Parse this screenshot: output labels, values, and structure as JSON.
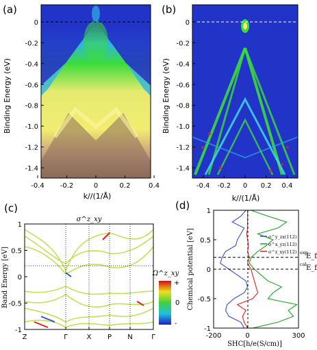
{
  "panel_labels": [
    "(a)",
    "(b)",
    "(c)",
    "(d)"
  ],
  "colors": {
    "arpes_bg": "#2233c8",
    "arpes_cyan": "#2fb4e0",
    "arpes_green": "#3bdc3b",
    "arpes_yellow": "#f2ec72",
    "arpes_brown": "#8a6a5a",
    "spectral_red": "#e02020",
    "shc_blue": "#3050e0",
    "shc_green": "#20a020",
    "shc_red": "#e02020"
  },
  "chart_data": [
    {
      "id": "a",
      "type": "heatmap",
      "ylabel": "Binding Energy (eV)",
      "xlabel": "k//(1/Å)",
      "yticks": [
        "0",
        "-0.2",
        "-0.4",
        "-0.6",
        "-0.8",
        "-1.0",
        "-1.2",
        "-1.4"
      ],
      "xticks": [
        "-0.4",
        "-0.2",
        "0",
        "0.2",
        "0.4"
      ],
      "ylim": [
        -1.5,
        0.07
      ],
      "xlim": [
        -0.55,
        0.55
      ],
      "dashed_line_y": 0
    },
    {
      "id": "b",
      "type": "heatmap",
      "ylabel": "Binding Energy (eV)",
      "xlabel": "k//(1/Å)",
      "yticks": [
        "0",
        "-0.2",
        "-0.4",
        "-0.6",
        "-0.8",
        "-1.0",
        "-1.2",
        "-1.4"
      ],
      "xticks": [
        "-0.4",
        "-0.2",
        "0",
        "0.2",
        "0.4"
      ],
      "ylim": [
        -1.5,
        0.07
      ],
      "xlim": [
        -0.5,
        0.5
      ],
      "dashed_line_y": 0
    },
    {
      "id": "c",
      "type": "line",
      "title": "σ^z_xy",
      "ylabel": "Band Energy [eV]",
      "yticks": [
        "1",
        "0.5",
        "0",
        "-0.5",
        "-1"
      ],
      "xticks": [
        "Z",
        "Γ",
        "X",
        "P",
        "N",
        "Γ"
      ],
      "ylim": [
        -1,
        1
      ],
      "colorbar": {
        "label": "Ω^z_xy",
        "ticks": [
          "+",
          "0",
          "-"
        ]
      },
      "dotted_line_y": 0.2
    },
    {
      "id": "d",
      "type": "line",
      "ylabel": "Chemical potential [eV]",
      "xlabel": "SHC[h/e(S/cm)]",
      "yticks": [
        "1",
        "0.5",
        "0",
        "-0.5",
        "-1"
      ],
      "xticks": [
        "-200",
        "0",
        "300"
      ],
      "xlim": [
        -200,
        300
      ],
      "ylim": [
        -1,
        1
      ],
      "legend": [
        "σ^y_zx(112)",
        "σ^x_yz(112)",
        "σ^z_xy(112)"
      ],
      "hlines": [
        {
          "y": 0.2,
          "label_sup": "exp",
          "label": "E_f"
        },
        {
          "y": 0,
          "label_sup": "cal",
          "label": "E_f"
        }
      ],
      "series": [
        {
          "name": "σ^y_zx(112)",
          "color": "#3050e0",
          "y": [
            -1,
            -0.9,
            -0.8,
            -0.7,
            -0.6,
            -0.5,
            -0.4,
            -0.3,
            -0.2,
            -0.1,
            0,
            0.1,
            0.2,
            0.3,
            0.4,
            0.5,
            0.6,
            0.7,
            0.8,
            0.9,
            1
          ],
          "x": [
            -20,
            -40,
            -110,
            -130,
            -120,
            -80,
            -20,
            0,
            -10,
            -60,
            -110,
            -160,
            -150,
            -130,
            -70,
            -60,
            -40,
            -20,
            -90,
            -40,
            -10
          ]
        },
        {
          "name": "σ^x_yz(112)",
          "color": "#20a020",
          "y": [
            -1,
            -0.9,
            -0.8,
            -0.7,
            -0.6,
            -0.5,
            -0.4,
            -0.3,
            -0.2,
            -0.1,
            0,
            0.1,
            0.2,
            0.3,
            0.4,
            0.5,
            0.6,
            0.7,
            0.8,
            0.9,
            1
          ],
          "x": [
            30,
            180,
            270,
            240,
            290,
            120,
            150,
            200,
            120,
            80,
            40,
            10,
            20,
            60,
            110,
            150,
            60,
            180,
            230,
            120,
            20
          ]
        },
        {
          "name": "σ^z_xy(112)",
          "color": "#e02020",
          "y": [
            -1,
            -0.9,
            -0.8,
            -0.7,
            -0.6,
            -0.5,
            -0.4,
            -0.3,
            -0.2,
            -0.1,
            0,
            0.1,
            0.2,
            0.3,
            0.4,
            0.5,
            0.6,
            0.7,
            0.8,
            0.9,
            1
          ],
          "x": [
            0,
            -20,
            -30,
            -10,
            -60,
            30,
            60,
            50,
            40,
            30,
            20,
            0,
            10,
            0,
            5,
            0,
            -5,
            0,
            0,
            0,
            0
          ]
        }
      ]
    }
  ]
}
